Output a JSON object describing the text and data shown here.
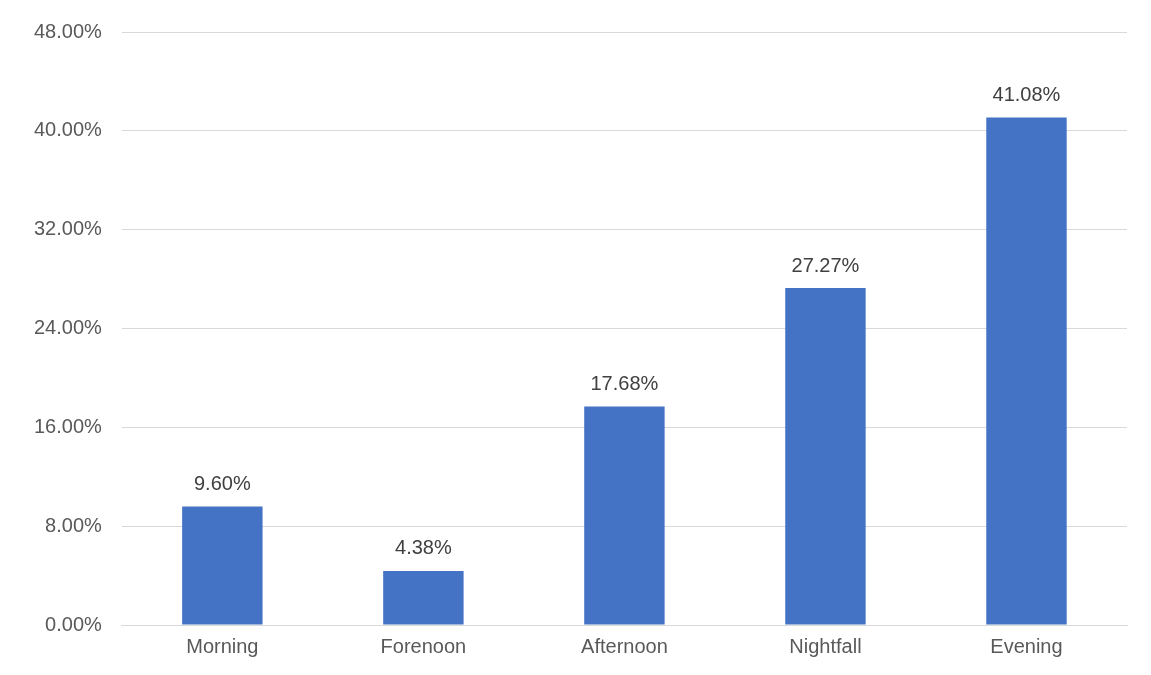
{
  "chart_data": {
    "type": "bar",
    "categories": [
      "Morning",
      "Forenoon",
      "Afternoon",
      "Nightfall",
      "Evening"
    ],
    "values": [
      9.6,
      4.38,
      17.68,
      27.27,
      41.08
    ],
    "value_labels": [
      "9.60%",
      "4.38%",
      "17.68%",
      "27.27%",
      "41.08%"
    ],
    "color": "#4472c4",
    "ylim": [
      0,
      48
    ],
    "yticks": [
      {
        "value": 0,
        "label": "0.00%"
      },
      {
        "value": 8,
        "label": "8.00%"
      },
      {
        "value": 16,
        "label": "16.00%"
      },
      {
        "value": 24,
        "label": "24.00%"
      },
      {
        "value": 32,
        "label": "32.00%"
      },
      {
        "value": 40,
        "label": "40.00%"
      },
      {
        "value": 48,
        "label": "48.00%"
      }
    ],
    "grid": "y",
    "legend": false
  }
}
